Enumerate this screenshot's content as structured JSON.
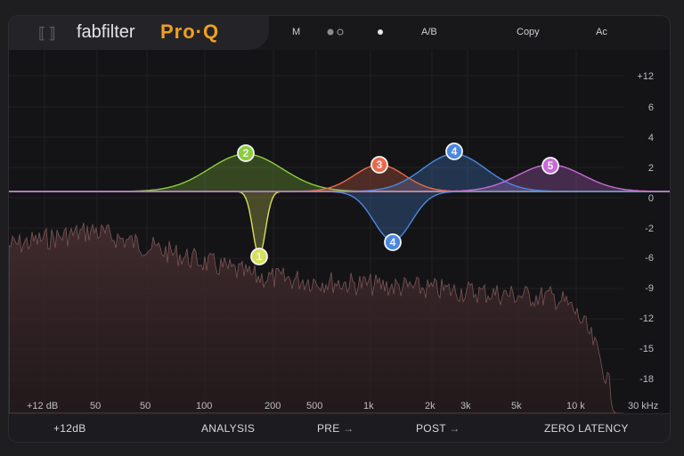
{
  "header": {
    "logo_mark": "⟦⟧",
    "brand": "fabfilter",
    "product": "Pro·Q",
    "midi_icon": "M",
    "undo_icon": "undo-redo-icon",
    "ab_label": "A/B",
    "copy_label": "Copy",
    "menu_label": "Ac"
  },
  "db_scale": [
    "+12",
    "6",
    "4",
    "2",
    "0",
    "-2",
    "-6",
    "-9",
    "-12",
    "-15",
    "-18"
  ],
  "freq_scale": [
    "+12 dB",
    "50",
    "50",
    "100",
    "200",
    "500",
    "1k",
    "2k",
    "3k",
    "5k",
    "10 k",
    "30 kHz"
  ],
  "bands": [
    {
      "id": "1",
      "type": "notch",
      "color": "#d6e05a"
    },
    {
      "id": "2",
      "type": "bell",
      "color": "#8ccd3c"
    },
    {
      "id": "3",
      "type": "bell",
      "color": "#e86a4a"
    },
    {
      "id": "4",
      "type": "bell",
      "color": "#4a88e0"
    },
    {
      "id": "4",
      "type": "bell",
      "color": "#4a88e0"
    },
    {
      "id": "5",
      "type": "bell",
      "color": "#c86ad8"
    }
  ],
  "footer": {
    "range": "+12dB",
    "analysis": "ANALYSIS",
    "pre": "PRE",
    "post": "POST",
    "latency": "ZERO LATENCY"
  },
  "colors": {
    "background": "#141417",
    "accent": "#f0a020",
    "spectrum": "#5a3a3c"
  }
}
